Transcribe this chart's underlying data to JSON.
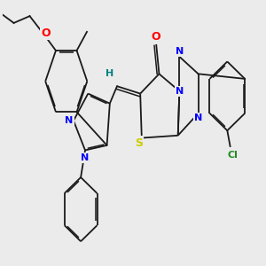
{
  "background_color": "#ebebeb",
  "fig_size": [
    3.0,
    3.0
  ],
  "dpi": 100,
  "bond_color": "#1a1a1a",
  "bond_lw": 1.3,
  "atom_colors": {
    "O": "#ff0000",
    "N": "#0000ff",
    "S": "#cccc00",
    "Cl": "#228b22",
    "H": "#008080",
    "C": "#1a1a1a"
  }
}
